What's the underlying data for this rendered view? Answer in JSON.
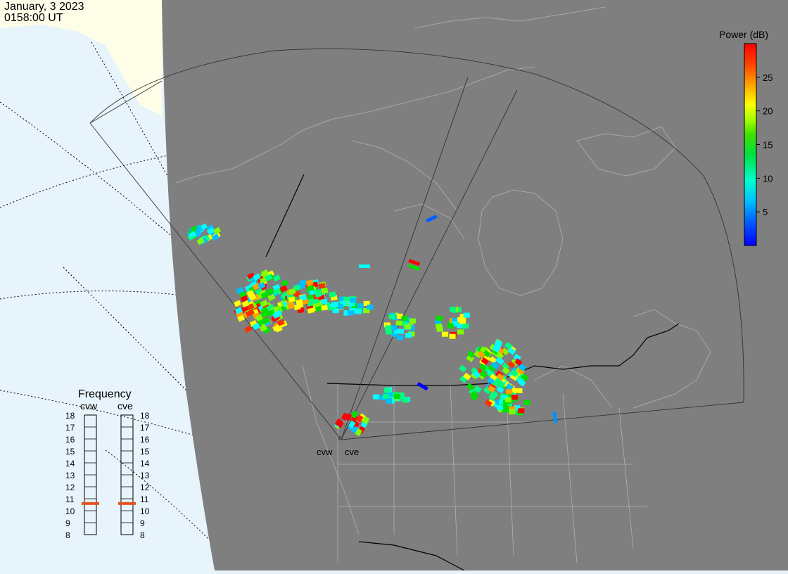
{
  "header": {
    "date": "January, 3 2023",
    "time": "0158:00 UT"
  },
  "colorbar": {
    "title": "Power (dB)",
    "ticks": [
      "25",
      "20",
      "15",
      "10",
      "5"
    ],
    "tick_values": [
      25,
      20,
      15,
      10,
      5
    ],
    "range": [
      0,
      30
    ],
    "colors": [
      "#0000ff",
      "#0090ff",
      "#00ffff",
      "#00ff80",
      "#00e000",
      "#80ff00",
      "#ffff00",
      "#ffa000",
      "#ff3000",
      "#ff0000"
    ]
  },
  "frequency_panel": {
    "title": "Frequency",
    "left_label": "cvw",
    "right_label": "cve",
    "scale": [
      "18",
      "17",
      "16",
      "15",
      "14",
      "13",
      "12",
      "11",
      "10",
      "9",
      "8"
    ],
    "cvw_value": 10.6,
    "cve_value": 10.6,
    "marker_color": "#e4501c"
  },
  "radars": {
    "west_label": "cvw",
    "east_label": "cve"
  },
  "colors": {
    "ocean": "#e8f4fb",
    "land_light": "#fdfde8",
    "night": "#7f7f7f",
    "coast_lines": "#9a9a9a",
    "border": "#000000"
  }
}
